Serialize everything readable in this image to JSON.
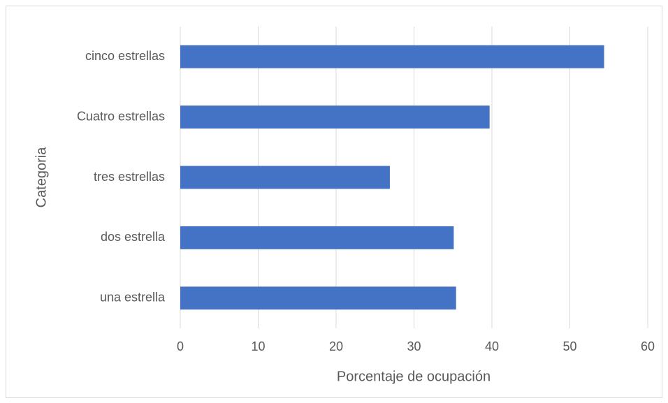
{
  "chart_data": {
    "type": "barh",
    "categories": [
      "una estrella",
      "dos estrella",
      "tres estrellas",
      "Cuatro estrellas",
      "cinco estrellas"
    ],
    "values": [
      35.4,
      35.1,
      26.9,
      39.7,
      54.4
    ],
    "color": "#4472c4",
    "xlim": [
      0,
      60
    ],
    "xticks": [
      0,
      10,
      20,
      30,
      40,
      50,
      60
    ],
    "xlabel": "Porcentaje de ocupación",
    "ylabel": "Categoria",
    "grid": true
  }
}
